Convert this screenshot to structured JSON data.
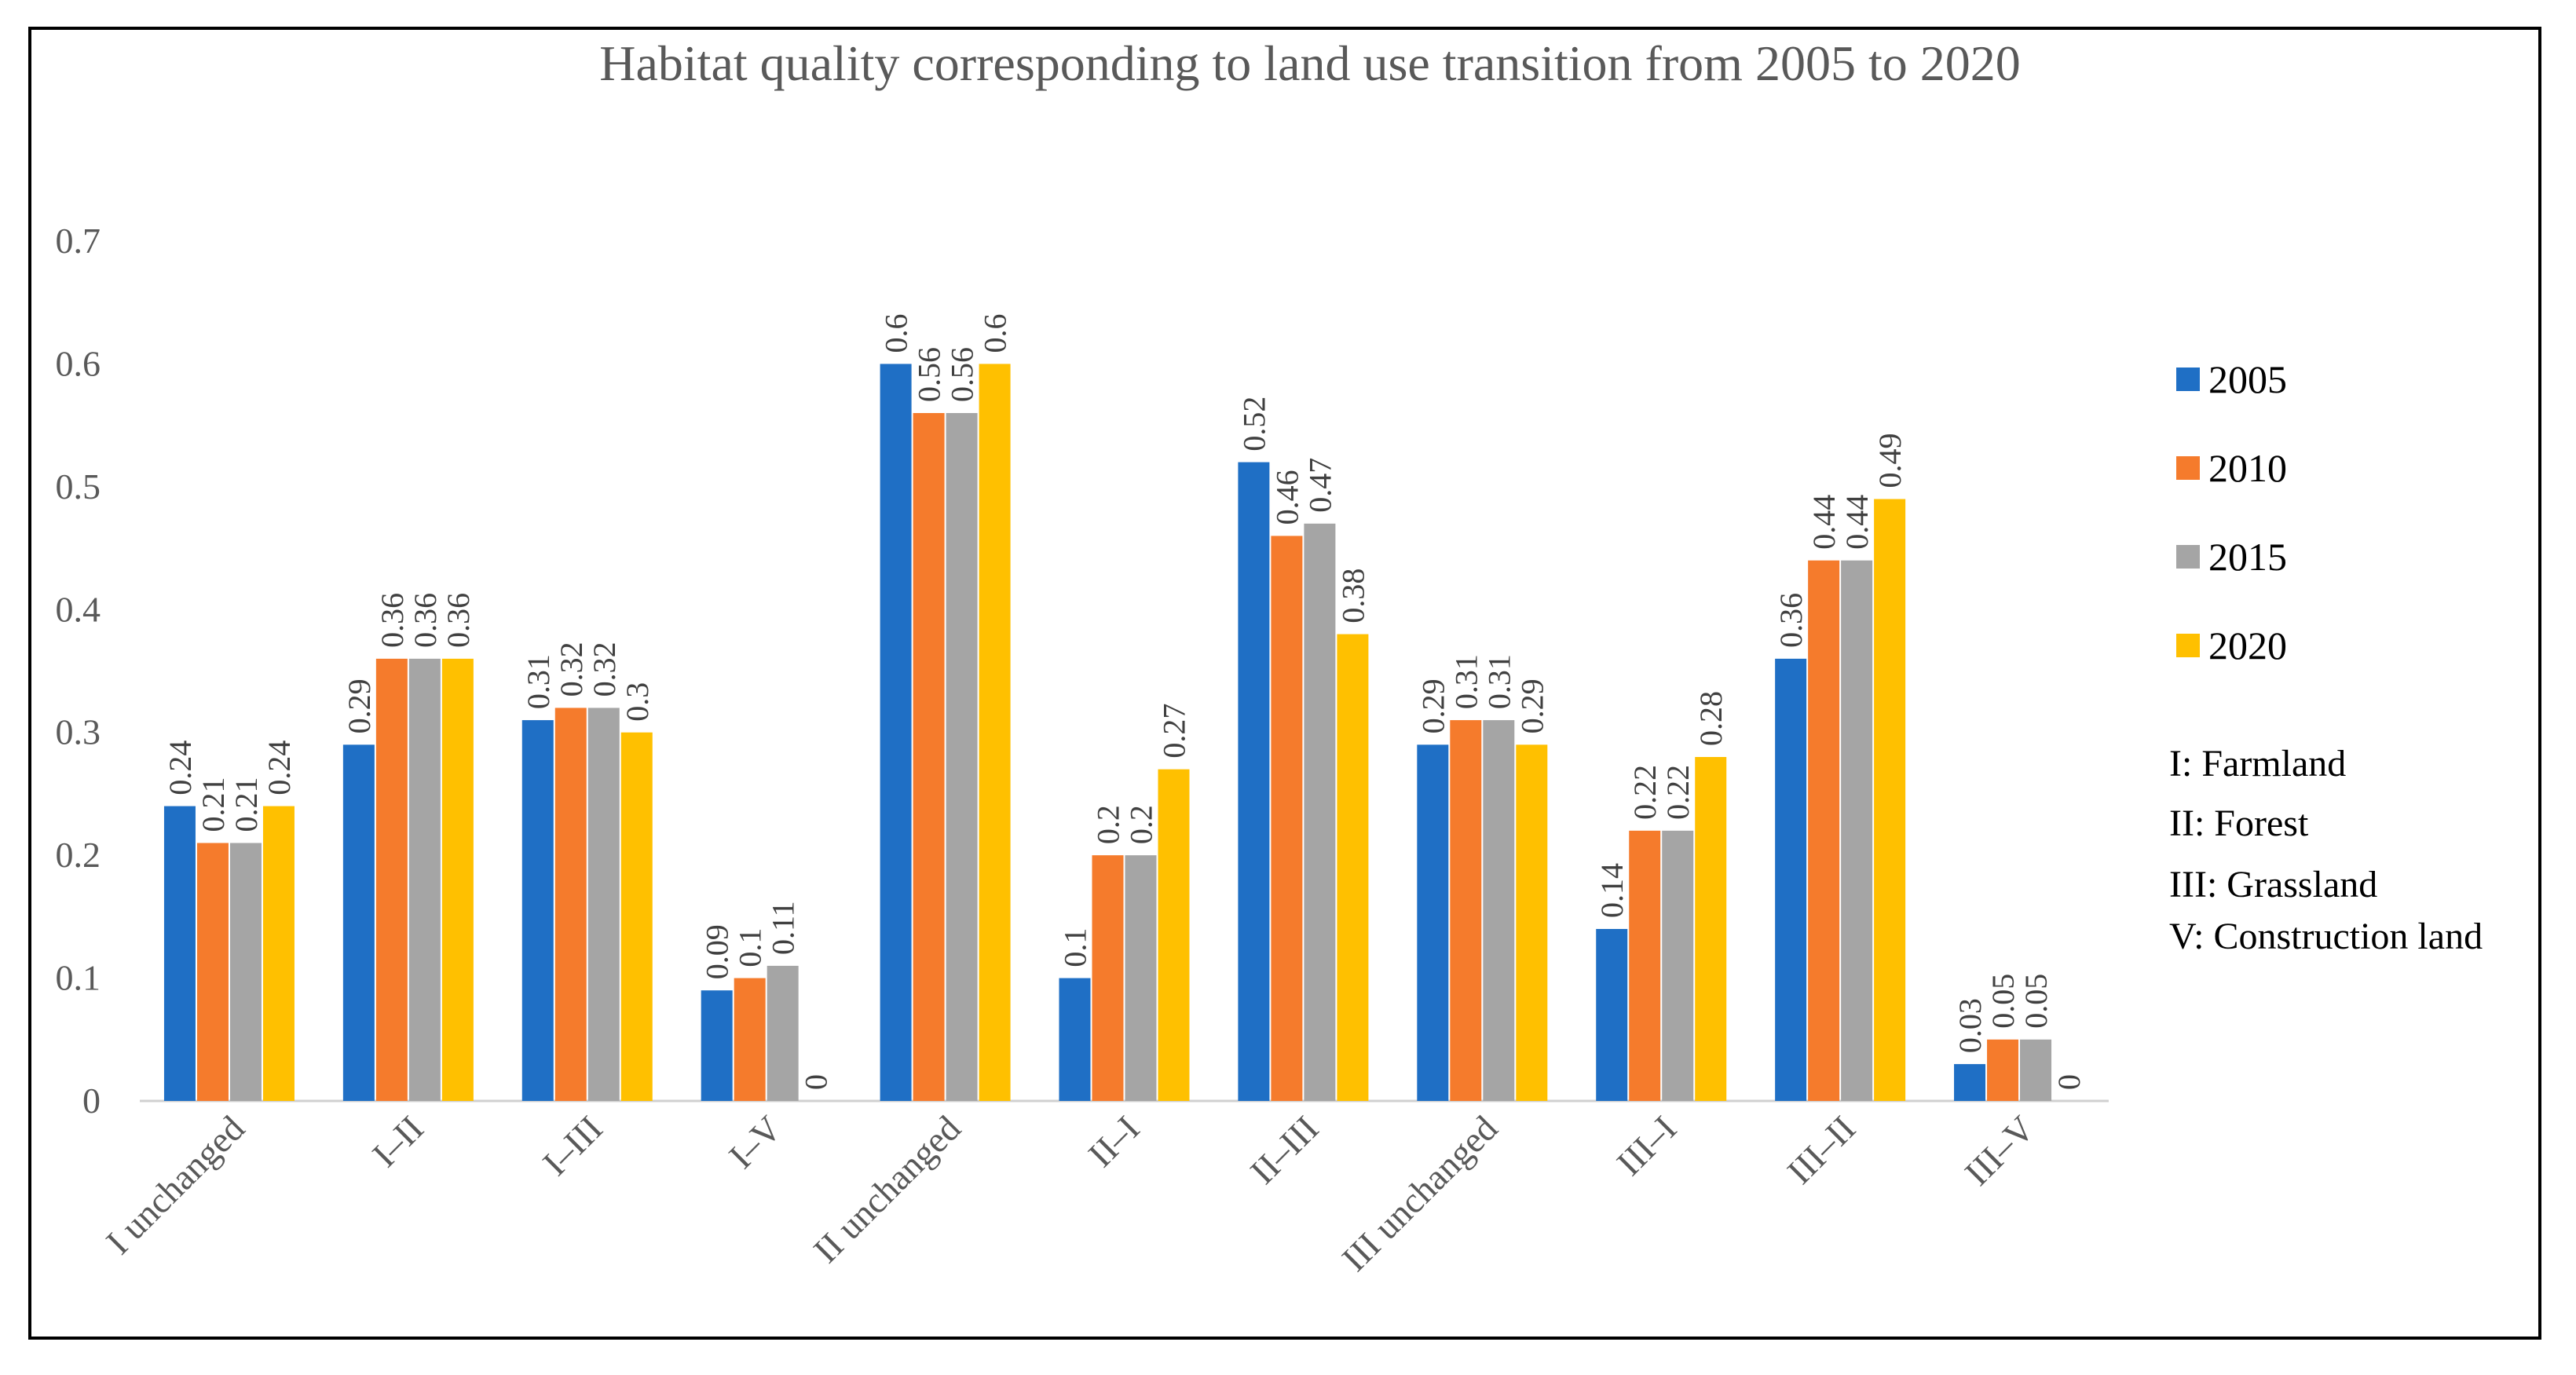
{
  "chart_data": {
    "type": "bar",
    "title": "Habitat quality corresponding to land use transition from 2005 to 2020",
    "categories": [
      "I unchanged",
      "I–II",
      "I–III",
      "I–V",
      "II unchanged",
      "II–I",
      "II–III",
      "III unchanged",
      "III–I",
      "III–II",
      "III–V"
    ],
    "series": [
      {
        "name": "2005",
        "color": "#1F6FC5",
        "values": [
          0.24,
          0.29,
          0.31,
          0.09,
          0.6,
          0.1,
          0.52,
          0.29,
          0.14,
          0.36,
          0.03
        ]
      },
      {
        "name": "2010",
        "color": "#F57B2C",
        "values": [
          0.21,
          0.36,
          0.32,
          0.1,
          0.56,
          0.2,
          0.46,
          0.31,
          0.22,
          0.44,
          0.05
        ]
      },
      {
        "name": "2015",
        "color": "#A5A5A5",
        "values": [
          0.21,
          0.36,
          0.32,
          0.11,
          0.56,
          0.2,
          0.47,
          0.31,
          0.22,
          0.44,
          0.05
        ]
      },
      {
        "name": "2020",
        "color": "#FFC000",
        "values": [
          0.24,
          0.36,
          0.3,
          0,
          0.6,
          0.27,
          0.38,
          0.29,
          0.28,
          0.49,
          0
        ]
      }
    ],
    "value_labels": [
      [
        "0.24",
        "0.29",
        "0.31",
        "0.09",
        "0.6",
        "0.1",
        "0.52",
        "0.29",
        "0.14",
        "0.36",
        "0.03"
      ],
      [
        "0.21",
        "0.36",
        "0.32",
        "0.1",
        "0.56",
        "0.2",
        "0.46",
        "0.31",
        "0.22",
        "0.44",
        "0.05"
      ],
      [
        "0.21",
        "0.36",
        "0.32",
        "0.11",
        "0.56",
        "0.2",
        "0.47",
        "0.31",
        "0.22",
        "0.44",
        "0.05"
      ],
      [
        "0.24",
        "0.36",
        "0.3",
        "0",
        "0.6",
        "0.27",
        "0.38",
        "0.29",
        "0.28",
        "0.49",
        "0"
      ]
    ],
    "ylim": [
      0,
      0.7
    ],
    "yticks": [
      0,
      0.1,
      0.2,
      0.3,
      0.4,
      0.5,
      0.6,
      0.7
    ],
    "ytick_labels": [
      "0",
      "0.1",
      "0.2",
      "0.3",
      "0.4",
      "0.5",
      "0.6",
      "0.7"
    ],
    "grid": false,
    "legend_position": "right",
    "legend_notes": [
      "I: Farmland",
      "II: Forest",
      "III: Grassland",
      "V: Construction land"
    ]
  }
}
